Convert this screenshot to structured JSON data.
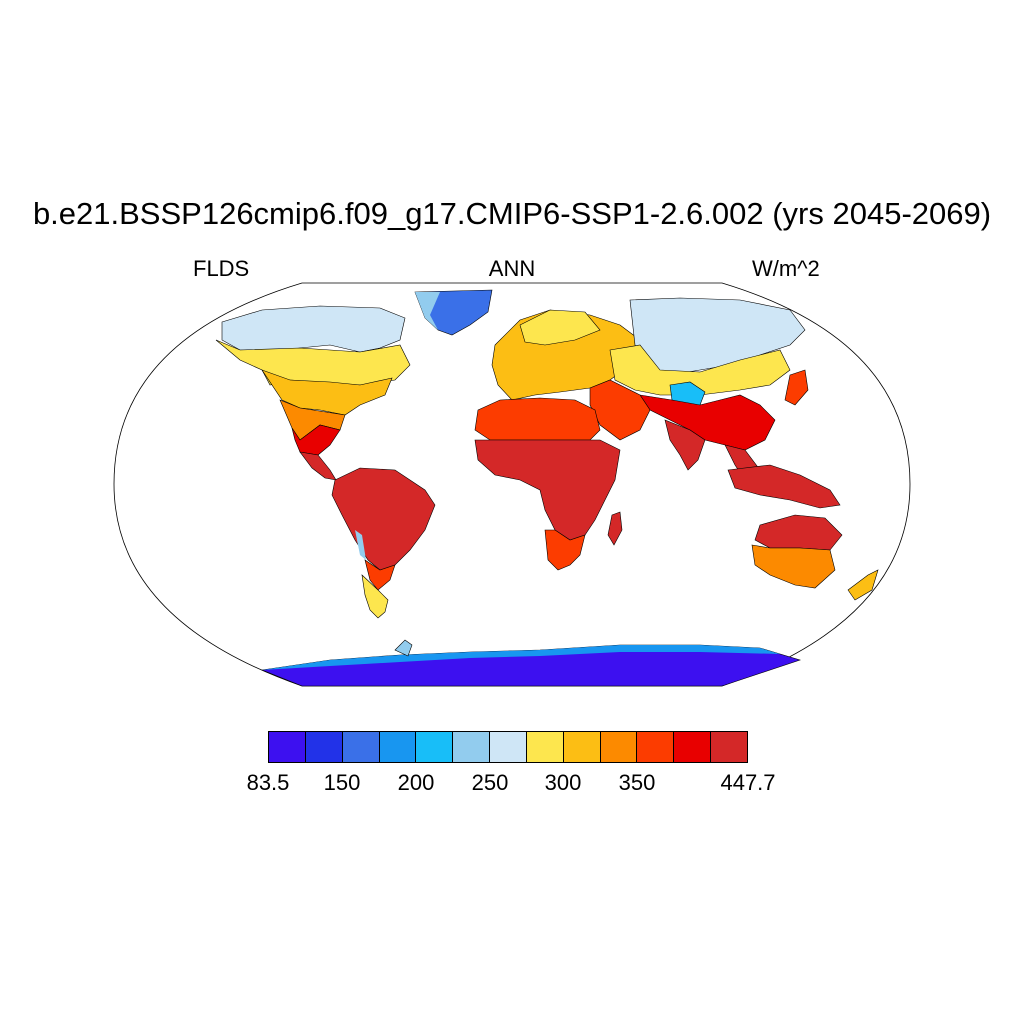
{
  "title": "b.e21.BSSP126cmip6.f09_g17.CMIP6-SSP1-2.6.002 (yrs 2045-2069)",
  "left_label": "FLDS",
  "center_label": "ANN",
  "right_label": "W/m^2",
  "colorbar": {
    "colors": [
      "#3d10f0",
      "#2232e8",
      "#3a70e8",
      "#1896f0",
      "#18bef8",
      "#92ccee",
      "#cfe6f6",
      "#fde64e",
      "#fcbe14",
      "#fc8a00",
      "#fc3c00",
      "#e80000",
      "#d42828"
    ],
    "tick_labels": [
      "83.5",
      "150",
      "200",
      "250",
      "300",
      "350",
      "447.7"
    ]
  },
  "map_colors": {
    "ocean": "#ffffff",
    "antarctica": "#3d10f0",
    "antarctica_edge": "#2232e8",
    "greenland": "#3a70e8",
    "tropics": "#d42828"
  }
}
